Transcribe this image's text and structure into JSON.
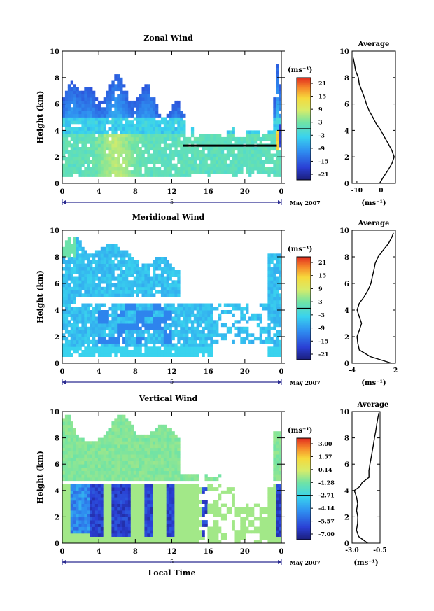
{
  "chart_data": [
    {
      "type": "heatmap",
      "title": "Zonal Wind",
      "ylabel": "Height (km)",
      "ylim": [
        0,
        10
      ],
      "yticks": [
        "0",
        "2",
        "4",
        "6",
        "8",
        "10"
      ],
      "xlim": [
        0,
        24
      ],
      "xticks": [
        "0",
        "4",
        "8",
        "12",
        "16",
        "20",
        "0"
      ],
      "date_label": "5",
      "month_label": "May 2007",
      "colorbar": {
        "unit_label": "(ms⁻¹)",
        "ticks": [
          "21",
          "15",
          "9",
          "3",
          "-3",
          "-9",
          "-15",
          "-21"
        ],
        "range": [
          -24,
          24
        ]
      },
      "average_profile": {
        "title": "Average",
        "xlabel": "(ms⁻¹)",
        "xlim": [
          -12,
          6
        ],
        "xticks": [
          "-10",
          "0"
        ],
        "yticks": [
          "0",
          "2",
          "4",
          "6",
          "8",
          "10"
        ],
        "height_km": [
          0,
          0.5,
          1,
          1.5,
          2,
          2.5,
          3,
          3.5,
          4,
          4.5,
          5,
          5.5,
          6,
          6.5,
          7,
          7.5,
          8,
          8.5,
          9,
          9.5
        ],
        "wind_ms": [
          -0.5,
          1,
          3,
          4.5,
          5.5,
          4.5,
          3,
          1.5,
          0,
          -2,
          -3.5,
          -5,
          -6,
          -7,
          -8,
          -9,
          -9.5,
          -10.5,
          -11,
          -11.5
        ]
      }
    },
    {
      "type": "heatmap",
      "title": "Meridional Wind",
      "ylabel": "Height (km)",
      "ylim": [
        0,
        10
      ],
      "yticks": [
        "0",
        "2",
        "4",
        "6",
        "8",
        "10"
      ],
      "xlim": [
        0,
        24
      ],
      "xticks": [
        "0",
        "4",
        "8",
        "12",
        "16",
        "20",
        "0"
      ],
      "date_label": "5",
      "month_label": "May 2007",
      "colorbar": {
        "unit_label": "(ms⁻¹)",
        "ticks": [
          "21",
          "15",
          "9",
          "3",
          "-3",
          "-9",
          "-15",
          "-21"
        ],
        "range": [
          -24,
          24
        ]
      },
      "average_profile": {
        "title": "Average",
        "xlabel": "(ms⁻¹)",
        "xlim": [
          -4,
          2
        ],
        "xticks": [
          "-4",
          "2"
        ],
        "yticks": [
          "0",
          "2",
          "4",
          "6",
          "8",
          "10"
        ],
        "height_km": [
          0,
          0.5,
          1,
          1.5,
          2,
          2.5,
          3,
          3.5,
          4,
          4.5,
          5,
          5.5,
          6,
          6.5,
          7,
          7.5,
          8,
          8.5,
          9,
          9.5,
          9.8
        ],
        "wind_ms": [
          1.5,
          -1.5,
          -3,
          -3.2,
          -3.3,
          -3,
          -2.7,
          -3,
          -3.3,
          -3,
          -2.3,
          -1.8,
          -1.4,
          -1.2,
          -1,
          -0.8,
          -0.4,
          0.3,
          1,
          1.5,
          1.7
        ]
      }
    },
    {
      "type": "heatmap",
      "title": "Vertical Wind",
      "ylabel": "Height (km)",
      "xlabel": "Local Time",
      "ylim": [
        0,
        10
      ],
      "yticks": [
        "0",
        "2",
        "4",
        "6",
        "8",
        "10"
      ],
      "xlim": [
        0,
        24
      ],
      "xticks": [
        "0",
        "4",
        "8",
        "12",
        "16",
        "20",
        "0"
      ],
      "date_label": "5",
      "month_label": "May 2007",
      "colorbar": {
        "unit_label": "(ms⁻¹)",
        "ticks": [
          "3.00",
          "1.57",
          "0.14",
          "-1.28",
          "-2.71",
          "-4.14",
          "-5.57",
          "-7.00"
        ],
        "range": [
          -7.7,
          3.7
        ]
      },
      "average_profile": {
        "title": "Average",
        "xlabel": "(ms⁻¹)",
        "xlim": [
          -3.0,
          -0.5
        ],
        "xticks": [
          "-3.0",
          "-0.5"
        ],
        "yticks": [
          "0",
          "2",
          "4",
          "6",
          "8",
          "10"
        ],
        "height_km": [
          0,
          0.5,
          1,
          1.5,
          2,
          2.5,
          3,
          3.5,
          4,
          4.3,
          4.6,
          5,
          5.5,
          6,
          6.5,
          7,
          7.5,
          8,
          8.5,
          9,
          9.5,
          9.9
        ],
        "wind_ms": [
          -1.6,
          -2.4,
          -2.6,
          -2.5,
          -2.5,
          -2.6,
          -2.5,
          -2.6,
          -2.8,
          -2.3,
          -2.1,
          -1.5,
          -1.5,
          -1.4,
          -1.3,
          -1.2,
          -1.1,
          -1.0,
          -0.9,
          -0.8,
          -0.7,
          -0.6
        ]
      }
    }
  ]
}
